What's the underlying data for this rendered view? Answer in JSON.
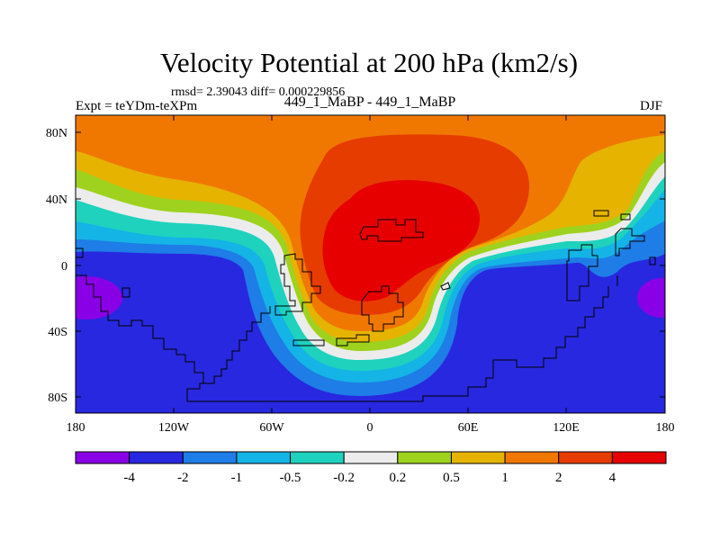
{
  "title": "Velocity Potential at 200 hPa (km2/s)",
  "stats": "rmsd= 2.39043 diff= 0.000229856",
  "left_label": "Expt = teYDm-teXPm",
  "center_label": "449_1_MaBP - 449_1_MaBP",
  "right_label": "DJF",
  "y_ticks": [
    "80N",
    "40N",
    "0",
    "40S",
    "80S"
  ],
  "x_ticks": [
    "180",
    "120W",
    "60W",
    "0",
    "60E",
    "120E",
    "180"
  ],
  "colorbar": {
    "labels": [
      "-4",
      "-2",
      "-1",
      "-0.5",
      "-0.2",
      "0.2",
      "0.5",
      "1",
      "2",
      "4"
    ],
    "colors": [
      "#8a00e6",
      "#2828e0",
      "#1e7de6",
      "#14b4e6",
      "#1ed2be",
      "#ececec",
      "#9ed21e",
      "#e6b400",
      "#f07800",
      "#e63c00",
      "#e60000"
    ]
  },
  "field_colors": {
    "deep_purple": "#8a00e6",
    "dark_blue": "#2828e0",
    "mid_blue": "#1e7de6",
    "light_blue": "#14b4e6",
    "teal": "#1ed2be",
    "white": "#ececec",
    "yellow_green": "#9ed21e",
    "yellow": "#e6b400",
    "orange": "#f07800",
    "red_orange": "#e63c00",
    "red": "#e60000"
  }
}
